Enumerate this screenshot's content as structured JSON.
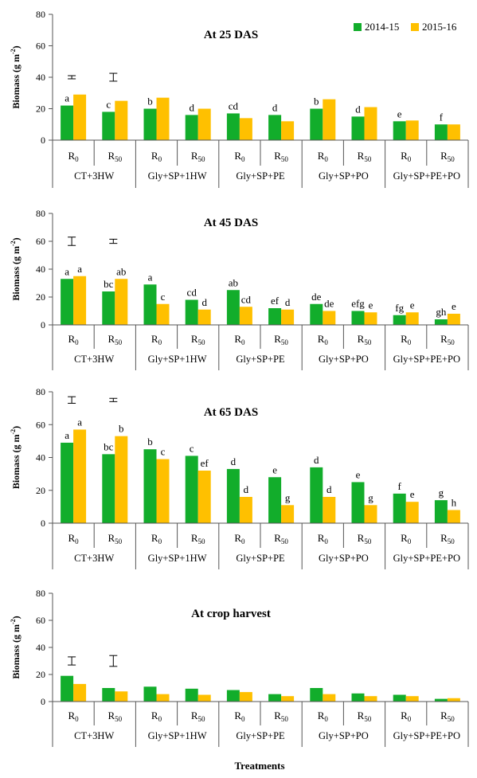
{
  "colors": {
    "s2014": "#12ad2b",
    "s2015": "#ffc000",
    "axis": "#555555",
    "text": "#000000"
  },
  "legend": [
    "2014-15",
    "2015-16"
  ],
  "x_title": "Treatments",
  "groups": [
    "CT+3HW",
    "Gly+SP+1HW",
    "Gly+SP+PE",
    "Gly+SP+PO",
    "Gly+SP+PE+PO"
  ],
  "chart_data": [
    {
      "type": "bar",
      "title": "At 25 DAS",
      "ylabel": "Biomass  (g m-2)",
      "ylim": [
        0,
        80
      ],
      "yticks": [
        0,
        20,
        40,
        60,
        80
      ],
      "categories": [
        "R0",
        "R50",
        "R0",
        "R50",
        "R0",
        "R50",
        "R0",
        "R50",
        "R0",
        "R50"
      ],
      "series": [
        {
          "name": "2014-15",
          "values": [
            22,
            18,
            20,
            16,
            17,
            16,
            20,
            15,
            12,
            10
          ]
        },
        {
          "name": "2015-16",
          "values": [
            29,
            25,
            27,
            20,
            14,
            12,
            26,
            21,
            12.5,
            10
          ]
        }
      ],
      "labels_2014": [
        "a",
        "c",
        "b",
        "d",
        "cd",
        "d",
        "b",
        "d",
        "e",
        "f"
      ],
      "labels_2015": [
        "",
        "",
        "",
        "",
        "",
        "",
        "",
        "",
        "",
        ""
      ],
      "error_bars": [
        {
          "category_index": 0,
          "center": 40,
          "half": 1
        },
        {
          "category_index": 1,
          "center": 40,
          "half": 2.5
        }
      ]
    },
    {
      "type": "bar",
      "title": "At 45 DAS",
      "ylabel": "Biomass  (g m-2)",
      "ylim": [
        0,
        80
      ],
      "yticks": [
        0,
        20,
        40,
        60,
        80
      ],
      "categories": [
        "R0",
        "R50",
        "R0",
        "R50",
        "R0",
        "R50",
        "R0",
        "R50",
        "R0",
        "R50"
      ],
      "series": [
        {
          "name": "2014-15",
          "values": [
            33,
            24,
            29,
            18,
            25,
            12,
            15,
            10,
            7,
            4
          ]
        },
        {
          "name": "2015-16",
          "values": [
            35,
            33,
            15,
            11,
            13,
            11,
            10,
            9,
            9,
            8
          ]
        }
      ],
      "labels_2014": [
        "a",
        "bc",
        "a",
        "cd",
        "ab",
        "ef",
        "de",
        "efg",
        "fg",
        "gh"
      ],
      "labels_2015": [
        "a",
        "ab",
        "c",
        "d",
        "cd",
        "d",
        "de",
        "e",
        "e",
        "e"
      ],
      "error_bars": [
        {
          "category_index": 0,
          "center": 60,
          "half": 3
        },
        {
          "category_index": 1,
          "center": 60,
          "half": 1.5
        }
      ]
    },
    {
      "type": "bar",
      "title": "At 65 DAS",
      "ylabel": "Biomass  (g m-2)",
      "ylim": [
        0,
        80
      ],
      "yticks": [
        0,
        20,
        40,
        60,
        80
      ],
      "categories": [
        "R0",
        "R50",
        "R0",
        "R50",
        "R0",
        "R50",
        "R0",
        "R50",
        "R0",
        "R50"
      ],
      "series": [
        {
          "name": "2014-15",
          "values": [
            49,
            42,
            45,
            41,
            33,
            28,
            34,
            25,
            18,
            14
          ]
        },
        {
          "name": "2015-16",
          "values": [
            57,
            53,
            39,
            32,
            16,
            11,
            16,
            11,
            13,
            8
          ]
        }
      ],
      "labels_2014": [
        "a",
        "bc",
        "b",
        "c",
        "d",
        "e",
        "d",
        "e",
        "f",
        "g"
      ],
      "labels_2015": [
        "a",
        "b",
        "c",
        "ef",
        "d",
        "g",
        "d",
        "g",
        "e",
        "h"
      ],
      "error_bars": [
        {
          "category_index": 0,
          "center": 75,
          "half": 2
        },
        {
          "category_index": 1,
          "center": 75,
          "half": 1
        }
      ]
    },
    {
      "type": "bar",
      "title": "At crop harvest",
      "ylabel": "Biomass  (g m-2)",
      "ylim": [
        0,
        80
      ],
      "yticks": [
        0,
        20,
        40,
        60,
        80
      ],
      "categories": [
        "R0",
        "R50",
        "R0",
        "R50",
        "R0",
        "R50",
        "R0",
        "R50",
        "R0",
        "R50"
      ],
      "series": [
        {
          "name": "2014-15",
          "values": [
            19,
            10,
            11,
            9.5,
            8.5,
            5.5,
            10,
            6,
            5,
            2
          ]
        },
        {
          "name": "2015-16",
          "values": [
            13,
            7.5,
            5.5,
            5,
            7,
            4,
            5.5,
            4,
            4,
            2.5
          ]
        }
      ],
      "labels_2014": [
        "",
        "",
        "",
        "",
        "",
        "",
        "",
        "",
        "",
        ""
      ],
      "labels_2015": [
        "",
        "",
        "",
        "",
        "",
        "",
        "",
        "",
        "",
        ""
      ],
      "error_bars": [
        {
          "category_index": 0,
          "center": 30,
          "half": 3
        },
        {
          "category_index": 1,
          "center": 30,
          "half": 4
        }
      ]
    }
  ]
}
